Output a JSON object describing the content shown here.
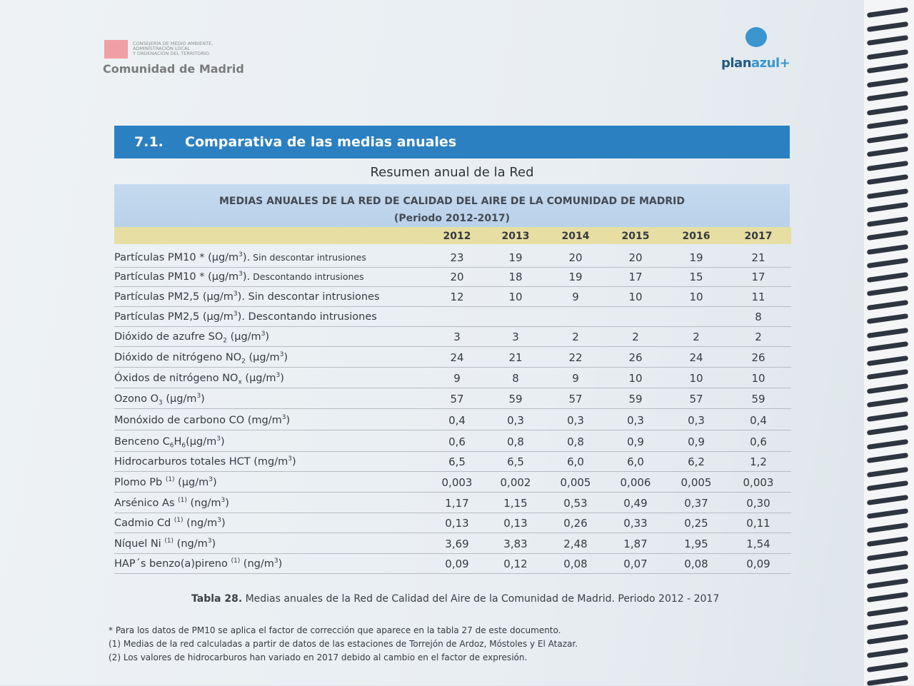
{
  "header": {
    "left_logo": {
      "lines": [
        "CONSEJERÍA DE MEDIO AMBIENTE,",
        "ADMINISTRACIÓN LOCAL",
        "Y ORDENACIÓN DEL TERRITORIO"
      ],
      "name": "Comunidad de Madrid"
    },
    "right_logo": {
      "plan": "plan",
      "azul": "azul+"
    }
  },
  "section": {
    "number": "7.1.",
    "title": "Comparativa de las medias anuales"
  },
  "subtitle": "Resumen anual de la Red",
  "table": {
    "title": "MEDIAS ANUALES DE LA RED DE CALIDAD DEL AIRE DE LA COMUNIDAD DE MADRID",
    "period": "(Periodo 2012-2017)",
    "years": [
      "2012",
      "2013",
      "2014",
      "2015",
      "2016",
      "2017"
    ],
    "rows": [
      {
        "label": [
          {
            "t": "Partículas PM10 * (µg/m"
          },
          {
            "sup": "3"
          },
          {
            "t": ")."
          },
          {
            "small": " Sin descontar intrusiones"
          }
        ],
        "values": [
          "23",
          "19",
          "20",
          "20",
          "19",
          "21"
        ]
      },
      {
        "label": [
          {
            "t": "Partículas PM10 * (µg/m"
          },
          {
            "sup": "3"
          },
          {
            "t": ")."
          },
          {
            "small": " Descontando intrusiones"
          }
        ],
        "values": [
          "20",
          "18",
          "19",
          "17",
          "15",
          "17"
        ]
      },
      {
        "label": [
          {
            "t": "Partículas PM2,5  (µg/m"
          },
          {
            "sup": "3"
          },
          {
            "t": "). Sin descontar intrusiones"
          }
        ],
        "values": [
          "12",
          "10",
          "9",
          "10",
          "10",
          "11"
        ]
      },
      {
        "label": [
          {
            "t": "Partículas PM2,5  (µg/m"
          },
          {
            "sup": "3"
          },
          {
            "t": "). Descontando intrusiones"
          }
        ],
        "values": [
          "",
          "",
          "",
          "",
          "",
          "8"
        ]
      },
      {
        "label": [
          {
            "t": "Dióxido de azufre SO"
          },
          {
            "sub": "2"
          },
          {
            "t": "  (µg/m"
          },
          {
            "sup": "3"
          },
          {
            "t": ")"
          }
        ],
        "values": [
          "3",
          "3",
          "2",
          "2",
          "2",
          "2"
        ]
      },
      {
        "label": [
          {
            "t": "Dióxido de nitrógeno NO"
          },
          {
            "sub": "2"
          },
          {
            "t": " (µg/m"
          },
          {
            "sup": "3"
          },
          {
            "t": ")"
          }
        ],
        "values": [
          "24",
          "21",
          "22",
          "26",
          "24",
          "26"
        ]
      },
      {
        "label": [
          {
            "t": "Óxidos de nitrógeno NO"
          },
          {
            "sub": "x"
          },
          {
            "t": " (µg/m"
          },
          {
            "sup": "3"
          },
          {
            "t": ")"
          }
        ],
        "values": [
          "9",
          "8",
          "9",
          "10",
          "10",
          "10"
        ]
      },
      {
        "label": [
          {
            "t": "Ozono O"
          },
          {
            "sub": "3"
          },
          {
            "t": "  (µg/m"
          },
          {
            "sup": "3"
          },
          {
            "t": ")"
          }
        ],
        "values": [
          "57",
          "59",
          "57",
          "59",
          "57",
          "59"
        ]
      },
      {
        "label": [
          {
            "t": "Monóxido de carbono CO (mg/m"
          },
          {
            "sup": "3"
          },
          {
            "t": ")"
          }
        ],
        "values": [
          "0,4",
          "0,3",
          "0,3",
          "0,3",
          "0,3",
          "0,4"
        ]
      },
      {
        "label": [
          {
            "t": "Benceno C"
          },
          {
            "sub": "6"
          },
          {
            "t": "H"
          },
          {
            "sub": "6"
          },
          {
            "t": "(µg/m"
          },
          {
            "sup": "3"
          },
          {
            "t": ")"
          }
        ],
        "values": [
          "0,6",
          "0,8",
          "0,8",
          "0,9",
          "0,9",
          "0,6"
        ]
      },
      {
        "label": [
          {
            "t": "Hidrocarburos totales HCT (mg/m"
          },
          {
            "sup": "3"
          },
          {
            "t": ")"
          }
        ],
        "values": [
          "6,5",
          "6,5",
          "6,0",
          "6,0",
          "6,2",
          "1,2"
        ]
      },
      {
        "label": [
          {
            "t": "Plomo Pb "
          },
          {
            "sup": "(1)"
          },
          {
            "t": " (µg/m"
          },
          {
            "sup": "3"
          },
          {
            "t": ")"
          }
        ],
        "values": [
          "0,003",
          "0,002",
          "0,005",
          "0,006",
          "0,005",
          "0,003"
        ]
      },
      {
        "label": [
          {
            "t": "Arsénico As "
          },
          {
            "sup": "(1)"
          },
          {
            "t": " (ng/m"
          },
          {
            "sup": "3"
          },
          {
            "t": ")"
          }
        ],
        "values": [
          "1,17",
          "1,15",
          "0,53",
          "0,49",
          "0,37",
          "0,30"
        ]
      },
      {
        "label": [
          {
            "t": "Cadmio Cd  "
          },
          {
            "sup": "(1)"
          },
          {
            "t": " (ng/m"
          },
          {
            "sup": "3"
          },
          {
            "t": ")"
          }
        ],
        "values": [
          "0,13",
          "0,13",
          "0,26",
          "0,33",
          "0,25",
          "0,11"
        ]
      },
      {
        "label": [
          {
            "t": "Níquel Ni "
          },
          {
            "sup": "(1)"
          },
          {
            "t": " (ng/m"
          },
          {
            "sup": "3"
          },
          {
            "t": ")"
          }
        ],
        "values": [
          "3,69",
          "3,83",
          "2,48",
          "1,87",
          "1,95",
          "1,54"
        ]
      },
      {
        "label": [
          {
            "t": "HAP´s benzo(a)pireno  "
          },
          {
            "sup": "(1)"
          },
          {
            "t": " (ng/m"
          },
          {
            "sup": "3"
          },
          {
            "t": ")"
          }
        ],
        "values": [
          "0,09",
          "0,12",
          "0,08",
          "0,07",
          "0,08",
          "0,09"
        ]
      }
    ]
  },
  "caption": {
    "label": "Tabla 28.",
    "text": " Medias anuales de la Red de Calidad del Aire de la Comunidad de Madrid. Periodo 2012 - 2017"
  },
  "notes": [
    "* Para los datos de PM10 se aplica el factor de corrección que aparece en la tabla 27 de este documento.",
    "(1) Medias de la red calculadas a partir de datos de las estaciones de Torrejón de Ardoz, Móstoles y El Atazar.",
    "(2) Los valores de hidrocarburos han variado en 2017 debido al cambio en el factor de expresión."
  ]
}
